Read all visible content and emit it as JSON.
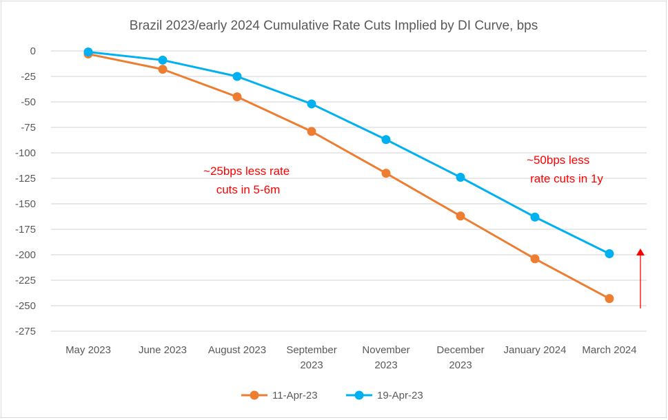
{
  "chart_data": {
    "type": "line",
    "title": "Brazil 2023/early 2024 Cumulative Rate Cuts Implied by DI Curve, bps",
    "xlabel": "",
    "ylabel": "",
    "categories": [
      "May 2023",
      "June 2023",
      "August 2023",
      "September 2023",
      "November 2023",
      "December 2023",
      "January 2024",
      "March 2024"
    ],
    "category_lines": [
      [
        "May 2023"
      ],
      [
        "June 2023"
      ],
      [
        "August 2023"
      ],
      [
        "September",
        "2023"
      ],
      [
        "November",
        "2023"
      ],
      [
        "December",
        "2023"
      ],
      [
        "January 2024"
      ],
      [
        "March 2024"
      ]
    ],
    "ylim": [
      -275,
      0
    ],
    "yticks": [
      0,
      -25,
      -50,
      -75,
      -100,
      -125,
      -150,
      -175,
      -200,
      -225,
      -250,
      -275
    ],
    "grid": true,
    "legend": "bottom",
    "series": [
      {
        "name": "11-Apr-23",
        "color": "#ed7d31",
        "values": [
          -3,
          -18,
          -45,
          -79,
          -120,
          -162,
          -204,
          -243
        ]
      },
      {
        "name": "19-Apr-23",
        "color": "#00b0f0",
        "values": [
          -1,
          -9,
          -25,
          -52,
          -87,
          -124,
          -163,
          -199
        ]
      }
    ],
    "annotations": [
      {
        "lines": [
          "~25bps less rate",
          "cuts in 5-6m"
        ],
        "color": "#ff0000"
      },
      {
        "lines": [
          "~50bps less",
          "rate cuts in 1y"
        ],
        "color": "#ff0000"
      }
    ],
    "arrow": {
      "direction": "up",
      "color": "#ff0000"
    }
  }
}
